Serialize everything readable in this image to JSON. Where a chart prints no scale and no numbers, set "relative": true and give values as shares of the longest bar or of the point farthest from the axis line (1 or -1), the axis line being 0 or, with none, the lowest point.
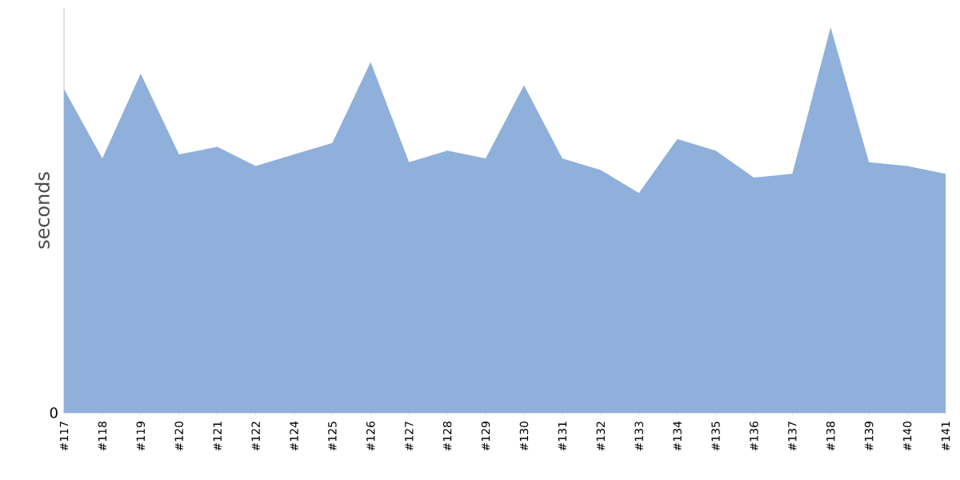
{
  "chart_data": {
    "type": "area",
    "relative": true,
    "ylabel": "seconds",
    "color": "#8fb0da",
    "categories": [
      "#117",
      "#118",
      "#119",
      "#120",
      "#121",
      "#122",
      "#124",
      "#125",
      "#126",
      "#127",
      "#128",
      "#129",
      "#130",
      "#131",
      "#132",
      "#133",
      "#134",
      "#135",
      "#136",
      "#137",
      "#138",
      "#139",
      "#140",
      "#141"
    ],
    "values": [
      0.84,
      0.66,
      0.88,
      0.67,
      0.69,
      0.64,
      0.67,
      0.7,
      0.91,
      0.65,
      0.68,
      0.66,
      0.85,
      0.66,
      0.63,
      0.57,
      0.71,
      0.68,
      0.61,
      0.62,
      1,
      0.65,
      0.64,
      0.62
    ],
    "annotations": [
      "0"
    ]
  }
}
